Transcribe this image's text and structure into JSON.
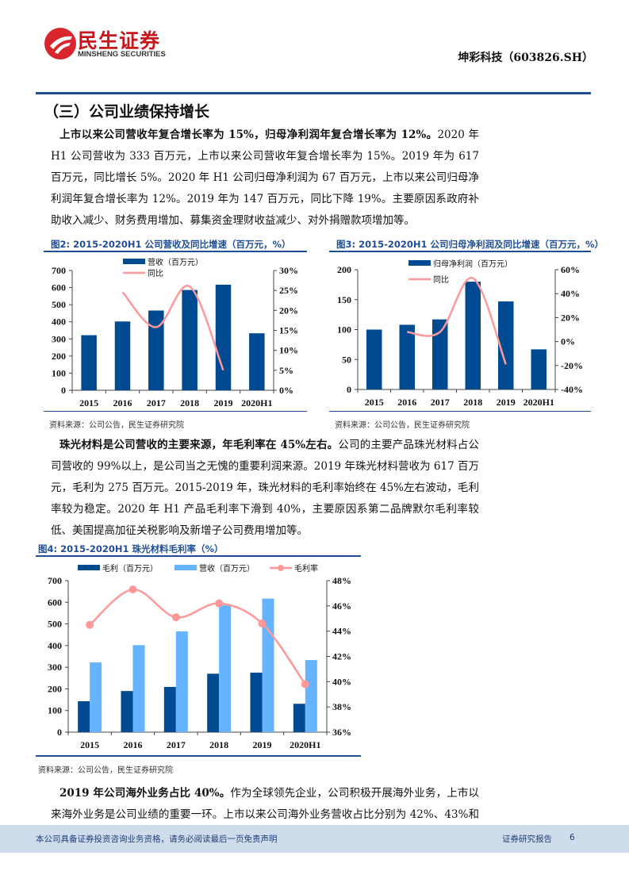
{
  "header": {
    "logo_cn": "民生证券",
    "logo_en": "MINSHENG SECURITIES",
    "ticker": "坤彩科技（603826.SH）"
  },
  "section_title": "（三）公司业绩保持增长",
  "para1": {
    "bold": "上市以来公司营收年复合增长率为 15%，归母净利润年复合增长率为 12%。",
    "text": "2020 年 H1 公司营收为 333 百万元，上市以来公司营收年复合增长率为 15%。2019 年为 617 百万元，同比增长 5%。2020 年 H1 公司归母净利润为 67 百万元，上市以来公司归母净利润年复合增长率为 12%。2019 年为 147 百万元，同比下降 19%。主要原因系政府补助收入减少、财务费用增加、募集资金理财收益减少、对外捐赠款项增加等。"
  },
  "para2": {
    "bold": "珠光材料是公司营收的主要来源，年毛利率在 45%左右。",
    "text": "公司的主要产品珠光材料占公司营收的 99%以上，是公司当之无愧的重要利润来源。2019 年珠光材料营收为 617 百万元，毛利为 275 百万元。2015-2019 年，珠光材料的毛利率始终在 45%左右波动，毛利率较为稳定。2020 年 H1 产品毛利率下滑到 40%，主要原因系第二品牌默尔毛利率较低、美国提高加征关税影响及新增子公司费用增加等。"
  },
  "para3": {
    "bold": "2019 年公司海外业务占比 40%。",
    "text": "作为全球领先企业，公司积极开展海外业务，上市以来海外业务是公司业绩的重要一环。上市以来公司海外业务营收占比分别为 42%、43%和 40%。2019"
  },
  "source": "资料来源：公司公告，民生证券研究院",
  "colors": {
    "dark_bar": "#004a91",
    "light_bar": "#66b3ff",
    "line": "#ff9999",
    "accent": "#1f4e96"
  },
  "chart_data": [
    {
      "type": "bar+line",
      "title": "图2: 2015-2020H1 公司营收及同比增速（百万元，%）",
      "categories": [
        "2015",
        "2016",
        "2017",
        "2018",
        "2019",
        "2020H1"
      ],
      "series": [
        {
          "name": "营收（百万元）",
          "type": "bar",
          "axis": "left",
          "values": [
            322,
            402,
            466,
            586,
            617,
            333
          ]
        },
        {
          "name": "同比",
          "type": "line",
          "axis": "right",
          "values": [
            null,
            24.6,
            15.8,
            26.0,
            5.0,
            null
          ]
        }
      ],
      "ylim": [
        0,
        700
      ],
      "yticks": [
        0,
        100,
        200,
        300,
        400,
        500,
        600,
        700
      ],
      "y2lim": [
        0,
        30
      ],
      "y2ticks": [
        "0%",
        "5%",
        "10%",
        "15%",
        "20%",
        "25%",
        "30%"
      ]
    },
    {
      "type": "bar+line",
      "title": "图3: 2015-2020H1 公司归母净利润及同比增速（百万元，%）",
      "categories": [
        "2015",
        "2016",
        "2017",
        "2018",
        "2019",
        "2020H1"
      ],
      "series": [
        {
          "name": "归母净利润（百万元）",
          "type": "bar",
          "axis": "left",
          "values": [
            100,
            108,
            117,
            180,
            147,
            67
          ]
        },
        {
          "name": "同比",
          "type": "line",
          "axis": "right",
          "values": [
            null,
            8,
            8,
            53,
            -19,
            null
          ]
        }
      ],
      "ylim": [
        0,
        200
      ],
      "yticks": [
        0,
        50,
        100,
        150,
        200
      ],
      "y2lim": [
        -40,
        60
      ],
      "y2ticks": [
        "-40%",
        "-20%",
        "0%",
        "20%",
        "40%",
        "60%"
      ]
    },
    {
      "type": "bar+line",
      "title": "图4: 2015-2020H1 珠光材料毛利率（%）",
      "categories": [
        "2015",
        "2016",
        "2017",
        "2018",
        "2019",
        "2020H1"
      ],
      "series": [
        {
          "name": "毛利（百万元）",
          "type": "bar",
          "axis": "left",
          "values": [
            143,
            190,
            209,
            270,
            275,
            131
          ]
        },
        {
          "name": "营收（百万元）",
          "type": "bar",
          "axis": "left",
          "values": [
            322,
            402,
            466,
            586,
            617,
            333
          ]
        },
        {
          "name": "毛利率",
          "type": "line",
          "axis": "right",
          "markers": true,
          "values": [
            44.5,
            47.3,
            45.1,
            46.2,
            44.6,
            39.8
          ]
        }
      ],
      "ylim": [
        0,
        700
      ],
      "yticks": [
        0,
        100,
        200,
        300,
        400,
        500,
        600,
        700
      ],
      "y2lim": [
        36,
        48
      ],
      "y2ticks": [
        "36%",
        "38%",
        "40%",
        "42%",
        "44%",
        "46%",
        "48%"
      ]
    }
  ],
  "footer": {
    "disclaimer": "本公司具备证券投资咨询业务资格，请务必阅读最后一页免责声明",
    "report_type": "证券研究报告",
    "page": "6"
  }
}
